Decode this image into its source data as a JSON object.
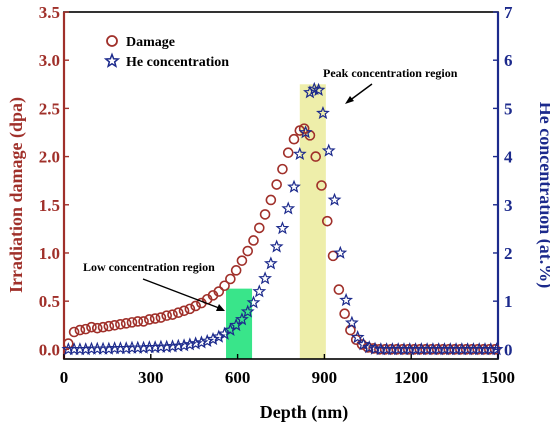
{
  "chart_data": {
    "type": "scatter",
    "xlabel": "Depth (nm)",
    "ylabel_left": "Irradiation damage (dpa)",
    "ylabel_right": "He concentration (at.%)",
    "xlim": [
      0,
      1500
    ],
    "ylim_left": [
      -0.1,
      3.5
    ],
    "ylim_right": [
      -0.2,
      7
    ],
    "xticks": [
      0,
      300,
      600,
      900,
      1200,
      1500
    ],
    "yticks_left": [
      0.0,
      0.5,
      1.0,
      1.5,
      2.0,
      2.5,
      3.0,
      3.5
    ],
    "yticks_right": [
      0,
      1,
      2,
      3,
      4,
      5,
      6,
      7
    ],
    "colors": {
      "damage": "#a0302a",
      "he": "#1c2a8c",
      "left_axis": "#a0302a",
      "right_axis": "#1c2a8c",
      "low_region": "#39e58a",
      "peak_region": "#eeeeaa"
    },
    "legend": {
      "placement": "top-left",
      "items": [
        {
          "label": "Damage",
          "marker": "circle"
        },
        {
          "label": "He concentration",
          "marker": "star"
        }
      ]
    },
    "regions": [
      {
        "label": "Low concentration region",
        "x_range": [
          560,
          650
        ],
        "y_top": 0.63
      },
      {
        "label": "Peak concentration region",
        "x_range": [
          815,
          905
        ],
        "y_top": 2.75
      }
    ],
    "series": [
      {
        "name": "Damage",
        "axis": "left",
        "marker": "circle",
        "points": [
          [
            15,
            0.06
          ],
          [
            35,
            0.18
          ],
          [
            55,
            0.2
          ],
          [
            75,
            0.21
          ],
          [
            95,
            0.23
          ],
          [
            115,
            0.22
          ],
          [
            135,
            0.23
          ],
          [
            155,
            0.24
          ],
          [
            175,
            0.25
          ],
          [
            195,
            0.26
          ],
          [
            215,
            0.27
          ],
          [
            235,
            0.28
          ],
          [
            255,
            0.29
          ],
          [
            275,
            0.29
          ],
          [
            295,
            0.31
          ],
          [
            315,
            0.32
          ],
          [
            335,
            0.33
          ],
          [
            355,
            0.35
          ],
          [
            375,
            0.36
          ],
          [
            395,
            0.38
          ],
          [
            415,
            0.4
          ],
          [
            435,
            0.42
          ],
          [
            455,
            0.45
          ],
          [
            475,
            0.48
          ],
          [
            495,
            0.52
          ],
          [
            515,
            0.56
          ],
          [
            535,
            0.6
          ],
          [
            555,
            0.66
          ],
          [
            575,
            0.73
          ],
          [
            595,
            0.82
          ],
          [
            615,
            0.92
          ],
          [
            635,
            1.02
          ],
          [
            655,
            1.13
          ],
          [
            675,
            1.26
          ],
          [
            695,
            1.4
          ],
          [
            715,
            1.55
          ],
          [
            735,
            1.71
          ],
          [
            755,
            1.87
          ],
          [
            775,
            2.04
          ],
          [
            795,
            2.18
          ],
          [
            815,
            2.27
          ],
          [
            830,
            2.29
          ],
          [
            850,
            2.22
          ],
          [
            870,
            2.0
          ],
          [
            890,
            1.7
          ],
          [
            910,
            1.33
          ],
          [
            930,
            0.97
          ],
          [
            950,
            0.62
          ],
          [
            970,
            0.37
          ],
          [
            990,
            0.2
          ],
          [
            1010,
            0.1
          ],
          [
            1030,
            0.05
          ],
          [
            1050,
            0.02
          ],
          [
            1070,
            0.01
          ],
          [
            1090,
            0.0
          ],
          [
            1110,
            0.0
          ],
          [
            1130,
            0.0
          ],
          [
            1150,
            0.0
          ],
          [
            1170,
            0.0
          ],
          [
            1190,
            0.0
          ],
          [
            1210,
            0.0
          ],
          [
            1230,
            0.0
          ],
          [
            1250,
            0.0
          ],
          [
            1270,
            0.0
          ],
          [
            1290,
            0.0
          ],
          [
            1310,
            0.0
          ],
          [
            1330,
            0.0
          ],
          [
            1350,
            0.0
          ],
          [
            1370,
            0.0
          ],
          [
            1390,
            0.0
          ],
          [
            1410,
            0.0
          ],
          [
            1430,
            0.0
          ],
          [
            1450,
            0.0
          ],
          [
            1470,
            0.0
          ],
          [
            1490,
            0.0
          ]
        ]
      },
      {
        "name": "He concentration",
        "axis": "right",
        "marker": "star",
        "points": [
          [
            15,
            0.0
          ],
          [
            35,
            0.0
          ],
          [
            55,
            0.0
          ],
          [
            75,
            0.0
          ],
          [
            95,
            0.01
          ],
          [
            115,
            0.01
          ],
          [
            135,
            0.01
          ],
          [
            155,
            0.01
          ],
          [
            175,
            0.02
          ],
          [
            195,
            0.02
          ],
          [
            215,
            0.02
          ],
          [
            235,
            0.03
          ],
          [
            255,
            0.03
          ],
          [
            275,
            0.03
          ],
          [
            295,
            0.04
          ],
          [
            315,
            0.04
          ],
          [
            335,
            0.05
          ],
          [
            355,
            0.05
          ],
          [
            375,
            0.06
          ],
          [
            395,
            0.07
          ],
          [
            415,
            0.08
          ],
          [
            435,
            0.1
          ],
          [
            455,
            0.12
          ],
          [
            475,
            0.14
          ],
          [
            495,
            0.17
          ],
          [
            515,
            0.21
          ],
          [
            535,
            0.26
          ],
          [
            555,
            0.32
          ],
          [
            575,
            0.4
          ],
          [
            595,
            0.5
          ],
          [
            615,
            0.62
          ],
          [
            635,
            0.78
          ],
          [
            655,
            0.97
          ],
          [
            675,
            1.2
          ],
          [
            695,
            1.47
          ],
          [
            715,
            1.78
          ],
          [
            735,
            2.13
          ],
          [
            755,
            2.51
          ],
          [
            775,
            2.92
          ],
          [
            795,
            3.37
          ],
          [
            815,
            4.05
          ],
          [
            835,
            4.5
          ],
          [
            850,
            5.33
          ],
          [
            865,
            5.4
          ],
          [
            880,
            5.38
          ],
          [
            895,
            4.9
          ],
          [
            915,
            4.12
          ],
          [
            935,
            3.1
          ],
          [
            955,
            2.0
          ],
          [
            975,
            1.02
          ],
          [
            995,
            0.55
          ],
          [
            1015,
            0.25
          ],
          [
            1035,
            0.1
          ],
          [
            1055,
            0.04
          ],
          [
            1075,
            0.01
          ],
          [
            1095,
            0.0
          ],
          [
            1115,
            0.0
          ],
          [
            1135,
            0.0
          ],
          [
            1155,
            0.0
          ],
          [
            1175,
            0.0
          ],
          [
            1195,
            0.0
          ],
          [
            1215,
            0.0
          ],
          [
            1235,
            0.0
          ],
          [
            1255,
            0.0
          ],
          [
            1275,
            0.0
          ],
          [
            1295,
            0.0
          ],
          [
            1315,
            0.0
          ],
          [
            1335,
            0.0
          ],
          [
            1355,
            0.0
          ],
          [
            1375,
            0.0
          ],
          [
            1395,
            0.0
          ],
          [
            1415,
            0.0
          ],
          [
            1435,
            0.0
          ],
          [
            1455,
            0.0
          ],
          [
            1475,
            0.0
          ],
          [
            1495,
            0.0
          ]
        ]
      }
    ]
  }
}
